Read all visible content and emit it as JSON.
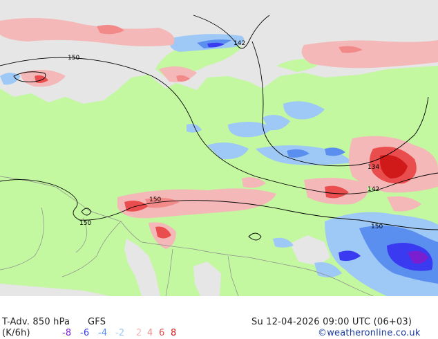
{
  "legend": {
    "title": "T-Adv. 850 hPa",
    "model": "GFS",
    "units": "(K/6h)",
    "datetime": "Su 12-04-2026 09:00 UTC (06+03)",
    "credit": "©weatheronline.co.uk",
    "scale": [
      {
        "label": "-8",
        "color": "#7a1fd0"
      },
      {
        "label": "-6",
        "color": "#3a3af0"
      },
      {
        "label": "-4",
        "color": "#5a8ff0"
      },
      {
        "label": "-2",
        "color": "#9ec8f5"
      },
      {
        "label": "2",
        "color": "#f5b8b8"
      },
      {
        "label": "4",
        "color": "#f28a8a"
      },
      {
        "label": "6",
        "color": "#ea4d4d"
      },
      {
        "label": "8",
        "color": "#d01a1a"
      }
    ]
  },
  "isolines": [
    {
      "label": "142"
    },
    {
      "label": "150"
    },
    {
      "label": "134"
    },
    {
      "label": "142"
    },
    {
      "label": "150"
    },
    {
      "label": "150"
    },
    {
      "label": "150"
    }
  ],
  "colors": {
    "land": "#c3f7a0",
    "sea": "#e6e6e6",
    "contour": "#000000",
    "border": "#8c8c8c"
  }
}
